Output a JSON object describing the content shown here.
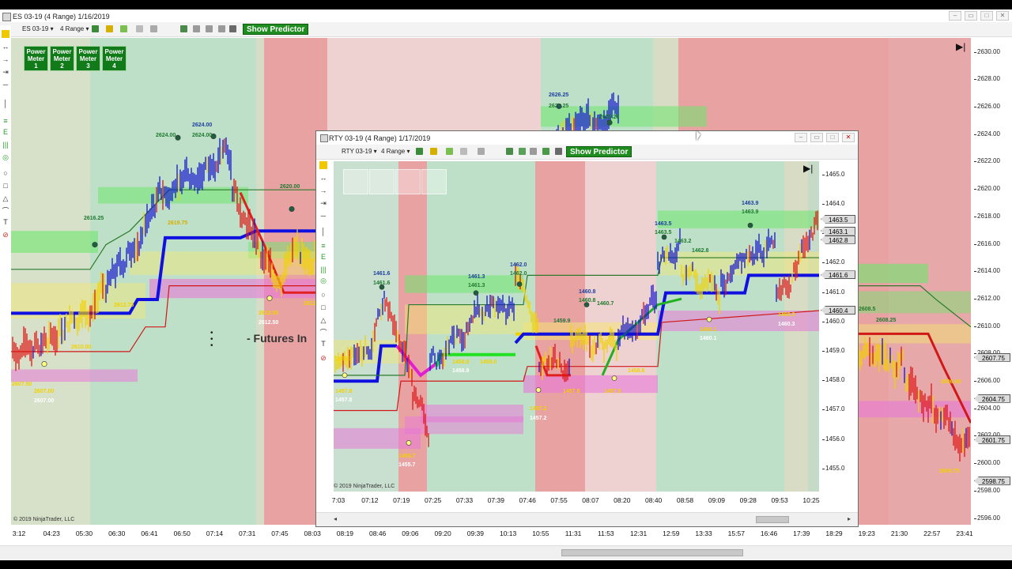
{
  "main": {
    "title": "ES 03-19 (4 Range)  1/16/2019",
    "instrument": "ES 03-19",
    "bar_type": "4 Range",
    "show_predictor": "Show Predictor",
    "power_meters": [
      "Power Meter 1",
      "Power Meter 2",
      "Power Meter 3",
      "Power Meter 4"
    ],
    "copyright": "© 2019 NinjaTrader, LLC",
    "overlay_text": "- Futures In",
    "price_ticks": [
      "2630.00",
      "2628.00",
      "2626.00",
      "2624.00",
      "2622.00",
      "2620.00",
      "2618.00",
      "2616.00",
      "2614.00",
      "2612.00",
      "2610.00",
      "2608.00",
      "2606.00",
      "2604.00",
      "2602.00",
      "2600.00",
      "2598.00",
      "2596.00"
    ],
    "price_labels": [
      "2607.75",
      "2604.75",
      "2601.75",
      "2598.75"
    ],
    "time_labels": [
      "3:12",
      "04:23",
      "05:30",
      "06:30",
      "06:41",
      "06:50",
      "07:14",
      "07:31",
      "07:45",
      "08:03",
      "08:19",
      "08:46",
      "09:06",
      "09:20",
      "09:39",
      "10:13",
      "10:55",
      "11:31",
      "11:53",
      "12:31",
      "12:59",
      "13:33",
      "15:57",
      "16:46",
      "17:39",
      "18:29",
      "19:23",
      "21:30",
      "22:57",
      "23:41"
    ],
    "annotations": [
      "2626.25",
      "2626.25",
      "2625.25",
      "2624.00",
      "2624.00",
      "2624.00",
      "2623.00",
      "2623.00",
      "2620.00",
      "2616.25",
      "2619.75",
      "2612.50",
      "2612.50",
      "2610.00",
      "2607.50",
      "2607.00",
      "2607.00",
      "2608.25",
      "2606.00",
      "2600.75",
      "2612.75",
      "2608.5",
      "2612.00"
    ]
  },
  "inner": {
    "title": "RTY 03-19 (4 Range)  1/17/2019",
    "instrument": "RTY 03-19",
    "bar_type": "4 Range",
    "show_predictor": "Show Predictor",
    "copyright": "© 2019 NinjaTrader, LLC",
    "price_ticks": [
      "1465.0",
      "1464.0",
      "1463.0",
      "1462.0",
      "1461.0",
      "1460.0",
      "1459.0",
      "1458.0",
      "1457.0",
      "1456.0",
      "1455.0"
    ],
    "price_labels": [
      "1463.5",
      "1463.1",
      "1462.8",
      "1461.6",
      "1460.4"
    ],
    "time_labels": [
      "7:03",
      "07:12",
      "07:19",
      "07:25",
      "07:33",
      "07:39",
      "07:46",
      "07:55",
      "08:07",
      "08:20",
      "08:40",
      "08:58",
      "09:09",
      "09:28",
      "09:53",
      "10:25"
    ],
    "annotations": [
      "1463.9",
      "1463.9",
      "1463.5",
      "1463.5",
      "1463.2",
      "1462.8",
      "1462.0",
      "1462.0",
      "1461.6",
      "1461.6",
      "1461.3",
      "1461.3",
      "1460.8",
      "1460.8",
      "1460.7",
      "1459.9",
      "1458.9",
      "1458.9",
      "1459.0",
      "1458.6",
      "1457.8",
      "1457.8",
      "1457.8",
      "1457.8",
      "1457.2",
      "1457.2",
      "1455.7",
      "1455.7",
      "1460.1",
      "1460.1",
      "1460.3",
      "1460.3",
      "1458.3"
    ]
  },
  "colors": {
    "up_bar": "#1414d2",
    "down_bar": "#e01414",
    "neutral_bar": "#f0d200",
    "trend_blue": "#1010e0",
    "trend_green": "#1eaa1e",
    "zone_green": "#6ee66e",
    "zone_magenta": "#e878d8",
    "zone_yellow": "#f5e66e",
    "bg_green": "#bfe0c8",
    "bg_red": "#e8a2a2",
    "predictor_button": "#1e8c1e"
  }
}
